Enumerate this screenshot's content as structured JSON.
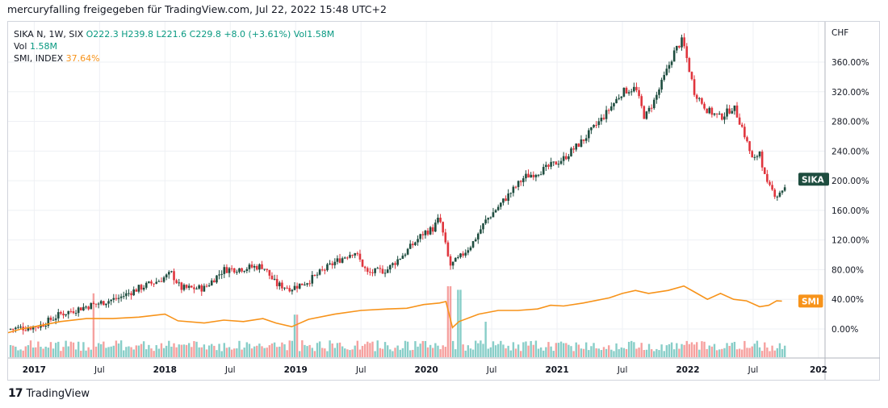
{
  "header": {
    "title": "mercuryfalling freigegeben für TradingView.com, Jul 22, 2022 15:48 UTC+2"
  },
  "legend": {
    "symbol": "SIKA N, 1W, SIX",
    "ohlc": "O222.3  H239.8  L221.6  C229.8  +8.0 (+3.61%)",
    "volume_label": "Vol1.58M",
    "vol_name": "Vol",
    "vol_value": "1.58M",
    "compare_name": "SMI, INDEX",
    "compare_value": "37.64%"
  },
  "footer": {
    "logo": "17",
    "brand": "TradingView"
  },
  "colors": {
    "up": "#26a69a",
    "down": "#ef5350",
    "candle_up": "#1e4d3f",
    "candle_down": "#e0353d",
    "smi": "#f7931a",
    "grid": "#f0f3fa",
    "sika_badge": "#1e4d3f"
  },
  "chart_data": {
    "type": "candlestick",
    "title": "SIKA N, 1W, SIX vs SMI, INDEX (percent scale)",
    "currency_label": "CHF",
    "y_unit": "percent",
    "ylim": [
      -30,
      400
    ],
    "y_ticks": [
      0,
      40,
      80,
      120,
      160,
      200,
      240,
      280,
      320,
      360
    ],
    "y_tick_labels": [
      "0.00%",
      "40.00%",
      "80.00%",
      "120.00%",
      "160.00%",
      "200.00%",
      "240.00%",
      "280.00%",
      "320.00%",
      "360.00%"
    ],
    "x_ticks": [
      {
        "t": 2017.0,
        "label": "2017",
        "bold": true
      },
      {
        "t": 2017.5,
        "label": "Jul",
        "bold": false
      },
      {
        "t": 2018.0,
        "label": "2018",
        "bold": true
      },
      {
        "t": 2018.5,
        "label": "Jul",
        "bold": false
      },
      {
        "t": 2019.0,
        "label": "2019",
        "bold": true
      },
      {
        "t": 2019.5,
        "label": "Jul",
        "bold": false
      },
      {
        "t": 2020.0,
        "label": "2020",
        "bold": true
      },
      {
        "t": 2020.5,
        "label": "Jul",
        "bold": false
      },
      {
        "t": 2021.0,
        "label": "2021",
        "bold": true
      },
      {
        "t": 2021.5,
        "label": "Jul",
        "bold": false
      },
      {
        "t": 2022.0,
        "label": "2022",
        "bold": true
      },
      {
        "t": 2022.5,
        "label": "Jul",
        "bold": false
      },
      {
        "t": 2023.0,
        "label": "202",
        "bold": true
      }
    ],
    "xlim": [
      2016.8,
      2023.05
    ],
    "series": [
      {
        "name": "SIKA",
        "kind": "price-percent",
        "badge": "SIKA",
        "points": [
          [
            2016.8,
            0
          ],
          [
            2016.95,
            2
          ],
          [
            2017.05,
            5
          ],
          [
            2017.2,
            20
          ],
          [
            2017.35,
            28
          ],
          [
            2017.5,
            35
          ],
          [
            2017.65,
            42
          ],
          [
            2017.8,
            55
          ],
          [
            2017.95,
            65
          ],
          [
            2018.05,
            75
          ],
          [
            2018.12,
            55
          ],
          [
            2018.3,
            55
          ],
          [
            2018.45,
            80
          ],
          [
            2018.6,
            82
          ],
          [
            2018.75,
            85
          ],
          [
            2018.85,
            60
          ],
          [
            2018.97,
            55
          ],
          [
            2019.1,
            65
          ],
          [
            2019.3,
            90
          ],
          [
            2019.45,
            105
          ],
          [
            2019.55,
            75
          ],
          [
            2019.7,
            80
          ],
          [
            2019.85,
            105
          ],
          [
            2019.98,
            130
          ],
          [
            2020.05,
            135
          ],
          [
            2020.1,
            150
          ],
          [
            2020.18,
            85
          ],
          [
            2020.25,
            95
          ],
          [
            2020.35,
            115
          ],
          [
            2020.45,
            145
          ],
          [
            2020.6,
            175
          ],
          [
            2020.75,
            205
          ],
          [
            2020.9,
            215
          ],
          [
            2021.05,
            230
          ],
          [
            2021.2,
            255
          ],
          [
            2021.35,
            285
          ],
          [
            2021.5,
            320
          ],
          [
            2021.6,
            325
          ],
          [
            2021.67,
            285
          ],
          [
            2021.75,
            310
          ],
          [
            2021.82,
            340
          ],
          [
            2021.9,
            375
          ],
          [
            2021.96,
            390
          ],
          [
            2022.05,
            320
          ],
          [
            2022.15,
            295
          ],
          [
            2022.25,
            285
          ],
          [
            2022.35,
            300
          ],
          [
            2022.42,
            270
          ],
          [
            2022.5,
            225
          ],
          [
            2022.55,
            240
          ],
          [
            2022.6,
            195
          ],
          [
            2022.68,
            180
          ],
          [
            2022.72,
            188
          ],
          [
            2022.75,
            190
          ]
        ],
        "last_value": 190
      },
      {
        "name": "SMI",
        "kind": "line-percent",
        "badge": "SMI",
        "points": [
          [
            2016.8,
            -5
          ],
          [
            2016.9,
            0
          ],
          [
            2017.0,
            3
          ],
          [
            2017.2,
            10
          ],
          [
            2017.4,
            14
          ],
          [
            2017.6,
            14
          ],
          [
            2017.8,
            16
          ],
          [
            2018.0,
            20
          ],
          [
            2018.1,
            11
          ],
          [
            2018.3,
            8
          ],
          [
            2018.45,
            12
          ],
          [
            2018.6,
            10
          ],
          [
            2018.75,
            14
          ],
          [
            2018.85,
            8
          ],
          [
            2018.97,
            3
          ],
          [
            2019.1,
            13
          ],
          [
            2019.3,
            20
          ],
          [
            2019.5,
            25
          ],
          [
            2019.7,
            27
          ],
          [
            2019.85,
            28
          ],
          [
            2019.98,
            33
          ],
          [
            2020.1,
            35
          ],
          [
            2020.15,
            37
          ],
          [
            2020.2,
            2
          ],
          [
            2020.25,
            10
          ],
          [
            2020.4,
            20
          ],
          [
            2020.55,
            25
          ],
          [
            2020.7,
            25
          ],
          [
            2020.85,
            27
          ],
          [
            2020.95,
            32
          ],
          [
            2021.05,
            31
          ],
          [
            2021.2,
            35
          ],
          [
            2021.4,
            42
          ],
          [
            2021.5,
            48
          ],
          [
            2021.6,
            52
          ],
          [
            2021.7,
            48
          ],
          [
            2021.85,
            52
          ],
          [
            2021.97,
            58
          ],
          [
            2022.05,
            50
          ],
          [
            2022.15,
            40
          ],
          [
            2022.25,
            48
          ],
          [
            2022.35,
            40
          ],
          [
            2022.45,
            38
          ],
          [
            2022.55,
            30
          ],
          [
            2022.62,
            32
          ],
          [
            2022.68,
            38
          ],
          [
            2022.72,
            37.64
          ]
        ],
        "last_value": 37.64
      }
    ],
    "volume": {
      "name": "Vol",
      "last": "1.58M",
      "spikes": [
        {
          "t": 2017.45,
          "level": 0.9
        },
        {
          "t": 2019.0,
          "level": 0.6
        },
        {
          "t": 2020.18,
          "level": 1.0
        },
        {
          "t": 2020.25,
          "level": 0.95
        },
        {
          "t": 2020.45,
          "level": 0.5
        }
      ]
    }
  }
}
